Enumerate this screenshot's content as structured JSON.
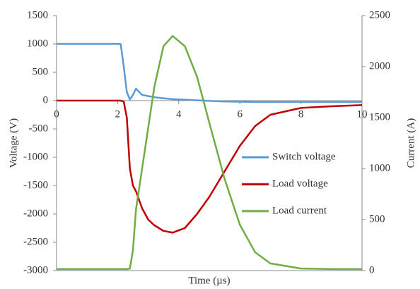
{
  "chart_data": {
    "type": "line",
    "x_label": "Time (µs)",
    "y_label": "Voltage (V)",
    "y2_label": "Current (A)",
    "x": [
      0,
      1,
      2,
      2.1,
      2.2,
      2.3,
      2.4,
      2.5,
      2.6,
      2.8,
      3,
      3.2,
      3.5,
      3.8,
      4.2,
      4.6,
      5,
      5.5,
      6,
      6.5,
      7,
      8,
      9,
      10
    ],
    "series": [
      {
        "name": "Switch voltage",
        "color": "#5b9bd5",
        "values": [
          1000,
          1000,
          1000,
          995,
          600,
          150,
          20,
          100,
          210,
          100,
          80,
          60,
          40,
          25,
          15,
          5,
          -5,
          -15,
          -20,
          -25,
          -25,
          -25,
          -25,
          -25
        ]
      },
      {
        "name": "Load voltage",
        "color": "#c00000",
        "values": [
          0,
          0,
          0,
          0,
          -20,
          -300,
          -1200,
          -1500,
          -1600,
          -1900,
          -2100,
          -2200,
          -2300,
          -2330,
          -2250,
          -2000,
          -1700,
          -1250,
          -800,
          -450,
          -250,
          -130,
          -100,
          -80
        ]
      },
      {
        "name": "Load current",
        "color": "#70ad47",
        "axis": "y2",
        "values": [
          15,
          15,
          15,
          15,
          15,
          15,
          20,
          200,
          600,
          1000,
          1400,
          1800,
          2200,
          2300,
          2200,
          1900,
          1450,
          900,
          450,
          180,
          70,
          20,
          15,
          15
        ]
      }
    ],
    "xlim": [
      0,
      10
    ],
    "xticks": [
      0,
      2,
      4,
      6,
      8,
      10
    ],
    "ylim": [
      -3000,
      1500
    ],
    "yticks": [
      -3000,
      -2500,
      -2000,
      -1500,
      -1000,
      -500,
      0,
      500,
      1000,
      1500
    ],
    "y2lim": [
      0,
      2500
    ],
    "y2ticks": [
      0,
      500,
      1000,
      1500,
      2000,
      2500
    ],
    "legend": "right",
    "grid": false
  }
}
